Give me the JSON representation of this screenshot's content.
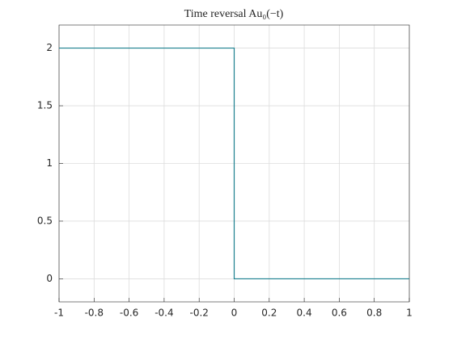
{
  "chart_data": {
    "type": "line",
    "title": "Time reversal Au₀(−t)",
    "x": [
      -1,
      0,
      0,
      1
    ],
    "series": [
      {
        "color": "#1a7f8e",
        "values": [
          2,
          2,
          0,
          0
        ]
      }
    ],
    "xlim": [
      -1,
      1
    ],
    "xticks": [
      -1,
      -0.8,
      -0.6,
      -0.4,
      -0.2,
      0,
      0.2,
      0.4,
      0.6,
      0.8,
      1
    ],
    "ylim": [
      -0.2,
      2.2
    ],
    "yticks": [
      0,
      0.5,
      1,
      1.5,
      2
    ],
    "grid": true
  }
}
